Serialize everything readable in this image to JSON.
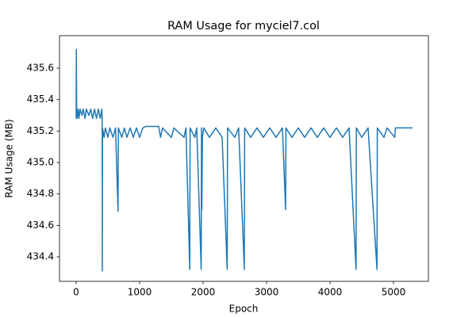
{
  "chart_data": {
    "type": "line",
    "title": "RAM Usage for myciel7.col",
    "x_label": "Epoch",
    "y_label": "RAM Usage (MB)",
    "xlim": [
      -262.5,
      5550
    ],
    "xticks": [
      0,
      1000,
      2000,
      3000,
      4000,
      5000
    ],
    "ylim": [
      434.244,
      435.807
    ],
    "yticks": [
      434.4,
      434.6,
      434.8,
      {
        "value": 435.0,
        "label": "435.0"
      },
      435.2,
      435.4,
      435.6
    ],
    "grid": false,
    "series": [
      {
        "color": "#1f77b4",
        "x": [
          0,
          3,
          8,
          15,
          30,
          45,
          60,
          90,
          110,
          140,
          160,
          200,
          230,
          260,
          290,
          320,
          350,
          380,
          405,
          410,
          412,
          415,
          440,
          460,
          500,
          530,
          580,
          620,
          660,
          665,
          720,
          760,
          800,
          850,
          900,
          950,
          1000,
          1050,
          1100,
          1300,
          1330,
          1360,
          1500,
          1540,
          1700,
          1730,
          1790,
          1795,
          1870,
          1900,
          1970,
          1975,
          1980,
          1990,
          2010,
          2100,
          2200,
          2300,
          2380,
          2385,
          2500,
          2560,
          2650,
          2655,
          2750,
          2850,
          2950,
          3050,
          3150,
          3250,
          3300,
          3305,
          3400,
          3500,
          3600,
          3700,
          3800,
          3900,
          4000,
          4100,
          4200,
          4300,
          4410,
          4415,
          4500,
          4600,
          4740,
          4745,
          4850,
          4900,
          5020,
          5030,
          5300
        ],
        "values": [
          435.28,
          435.72,
          435.3,
          435.28,
          435.34,
          435.28,
          435.34,
          435.3,
          435.34,
          435.28,
          435.34,
          435.3,
          435.34,
          435.28,
          435.34,
          435.28,
          435.34,
          435.28,
          435.34,
          435.28,
          434.31,
          435.22,
          435.16,
          435.22,
          435.16,
          435.22,
          435.16,
          435.22,
          434.69,
          435.22,
          435.16,
          435.22,
          435.16,
          435.22,
          435.16,
          435.22,
          435.16,
          435.22,
          435.23,
          435.23,
          435.16,
          435.22,
          435.16,
          435.22,
          435.16,
          435.22,
          434.32,
          435.22,
          435.16,
          435.22,
          434.32,
          435.22,
          434.7,
          435.16,
          435.22,
          435.16,
          435.22,
          435.16,
          434.32,
          435.22,
          435.16,
          435.22,
          434.32,
          435.22,
          435.16,
          435.22,
          435.16,
          435.22,
          435.16,
          435.22,
          434.7,
          435.22,
          435.16,
          435.22,
          435.16,
          435.22,
          435.16,
          435.22,
          435.16,
          435.22,
          435.16,
          435.22,
          434.32,
          435.22,
          435.16,
          435.22,
          434.32,
          435.22,
          435.16,
          435.22,
          435.16,
          435.22,
          435.22
        ]
      }
    ]
  }
}
